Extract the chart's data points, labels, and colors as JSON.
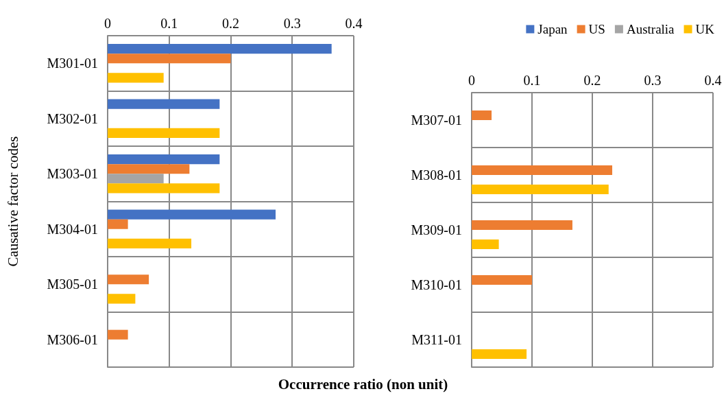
{
  "chart_data": [
    {
      "type": "bar",
      "orientation": "horizontal",
      "ylabel": "Causative factor codes",
      "xlabel": "Occurrence ratio (non unit)",
      "categories": [
        "M301-01",
        "M302-01",
        "M303-01",
        "M304-01",
        "M305-01",
        "M306-01"
      ],
      "xlim": [
        0,
        0.4
      ],
      "xticks": [
        0,
        0.1,
        0.2,
        0.3,
        0.4
      ],
      "grid": true,
      "legend": false,
      "series": [
        {
          "color": "#4472c4",
          "values": [
            0.364,
            0.182,
            0.182,
            0.273,
            null,
            null
          ]
        },
        {
          "color": "#ed7d31",
          "values": [
            0.2,
            null,
            0.133,
            0.033,
            0.067,
            0.033
          ]
        },
        {
          "color": "#a5a5a5",
          "values": [
            null,
            null,
            0.091,
            null,
            null,
            null
          ]
        },
        {
          "color": "#ffc000",
          "values": [
            0.091,
            0.182,
            0.182,
            0.136,
            0.045,
            null
          ]
        }
      ]
    },
    {
      "type": "bar",
      "orientation": "horizontal",
      "categories": [
        "M307-01",
        "M308-01",
        "M309-01",
        "M310-01",
        "M311-01"
      ],
      "xlim": [
        0,
        0.4
      ],
      "xticks": [
        0,
        0.1,
        0.2,
        0.3,
        0.4
      ],
      "grid": true,
      "legend": "top right",
      "series": [
        {
          "name": "Japan",
          "color": "#4472c4",
          "values": [
            null,
            null,
            null,
            null,
            null
          ]
        },
        {
          "name": "US",
          "color": "#ed7d31",
          "values": [
            0.033,
            0.233,
            0.167,
            0.1,
            null
          ]
        },
        {
          "name": "Australia",
          "color": "#a5a5a5",
          "values": [
            null,
            null,
            null,
            null,
            null
          ]
        },
        {
          "name": "UK",
          "color": "#ffc000",
          "values": [
            null,
            0.227,
            0.045,
            null,
            0.091
          ]
        }
      ]
    }
  ]
}
